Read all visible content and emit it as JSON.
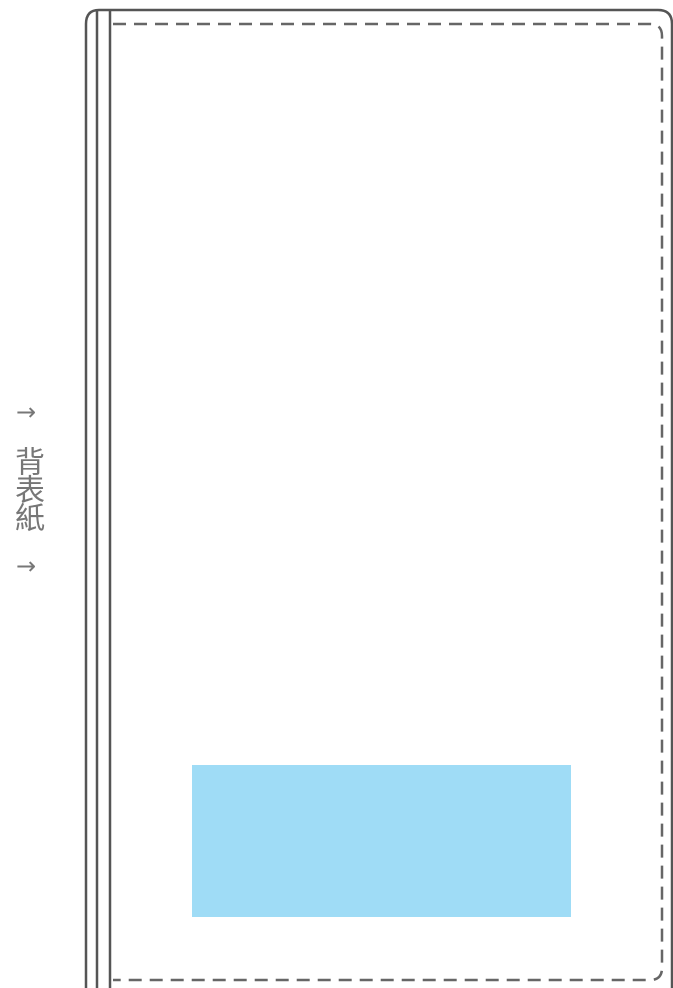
{
  "spine_label": {
    "arrow_top": "→",
    "text": "背表紙",
    "arrow_bottom": "→"
  },
  "colors": {
    "outline": "#555555",
    "cut_line": "#666666",
    "highlight": "#9fdcf6",
    "label": "#777777"
  }
}
